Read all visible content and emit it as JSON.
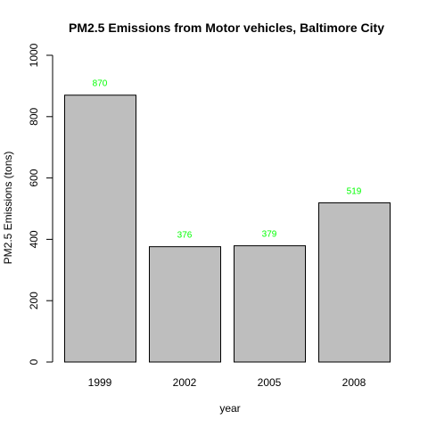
{
  "chart_data": {
    "type": "bar",
    "title": "PM2.5 Emissions from Motor vehicles, Baltimore City",
    "xlabel": "year",
    "ylabel": "PM2.5 Emissions (tons)",
    "categories": [
      "1999",
      "2002",
      "2005",
      "2008"
    ],
    "values": [
      870,
      376,
      379,
      519
    ],
    "data_labels": [
      "870",
      "376",
      "379",
      "519"
    ],
    "ylim": [
      0,
      1000
    ],
    "yticks": [
      0,
      200,
      400,
      600,
      800,
      1000
    ],
    "ytick_labels": [
      "0",
      "200",
      "400",
      "600",
      "800",
      "1000"
    ],
    "grid": false,
    "bar_color": "#bebebe",
    "bar_border_color": "#000000",
    "label_color": "#00ff00"
  }
}
